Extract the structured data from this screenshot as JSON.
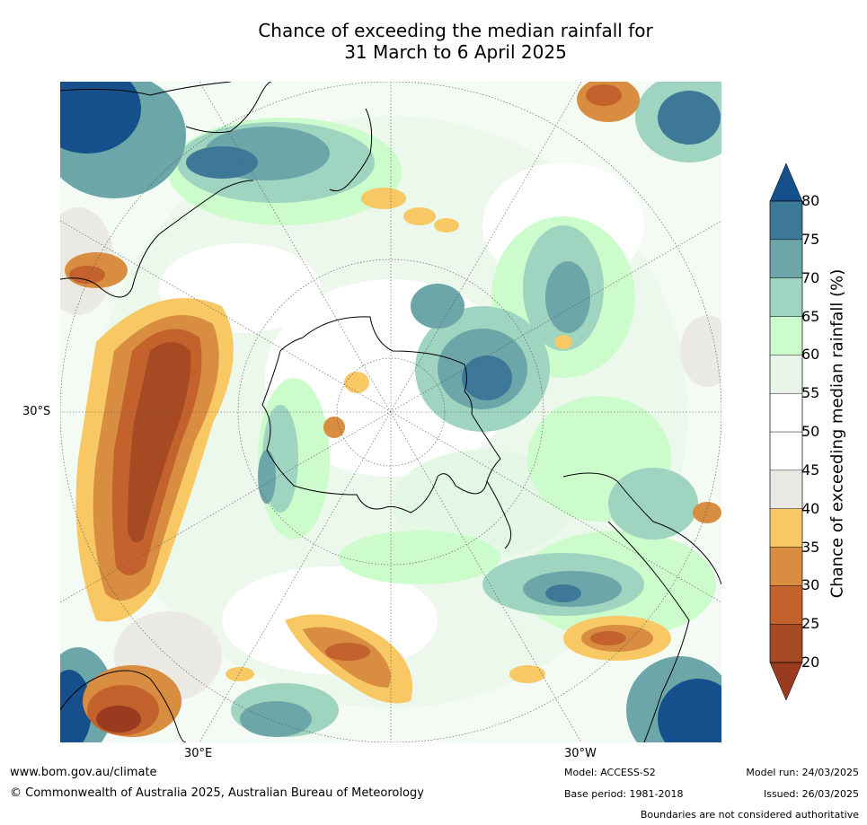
{
  "title": {
    "line1": "Chance of exceeding the median rainfall for",
    "line2": "31 March to 6 April 2025"
  },
  "map": {
    "projection": "south polar stereographic",
    "lat_labels": {
      "lat_30s": "30°S"
    },
    "lon_labels": {
      "lon_30e": "30°E",
      "lon_30w": "30°W"
    },
    "colors": {
      "land_border": "#000000",
      "graticule": "#555555"
    }
  },
  "colorbar": {
    "label": "Chance of exceeding median rainfall (%)",
    "ticks": [
      "20",
      "25",
      "30",
      "35",
      "40",
      "45",
      "50",
      "55",
      "60",
      "65",
      "70",
      "75",
      "80"
    ],
    "colors": [
      "#9a3a1f",
      "#a64a24",
      "#c4622e",
      "#d98d40",
      "#f8c864",
      "#ebe9e4",
      "#ffffff",
      "#ffffff",
      "#e8f5e8",
      "#ccfccc",
      "#9ed4c0",
      "#6ca6a8",
      "#3e7898",
      "#15508c"
    ]
  },
  "footer": {
    "url": "www.bom.gov.au/climate",
    "copyright": "© Commonwealth of Australia 2025, Australian Bureau of Meteorology",
    "model": "Model: ACCESS-S2",
    "base_period": "Base period: 1981-2018",
    "model_run": "Model run: 24/03/2025",
    "issued": "Issued: 26/03/2025",
    "disclaimer": "Boundaries are not considered authoritative"
  }
}
